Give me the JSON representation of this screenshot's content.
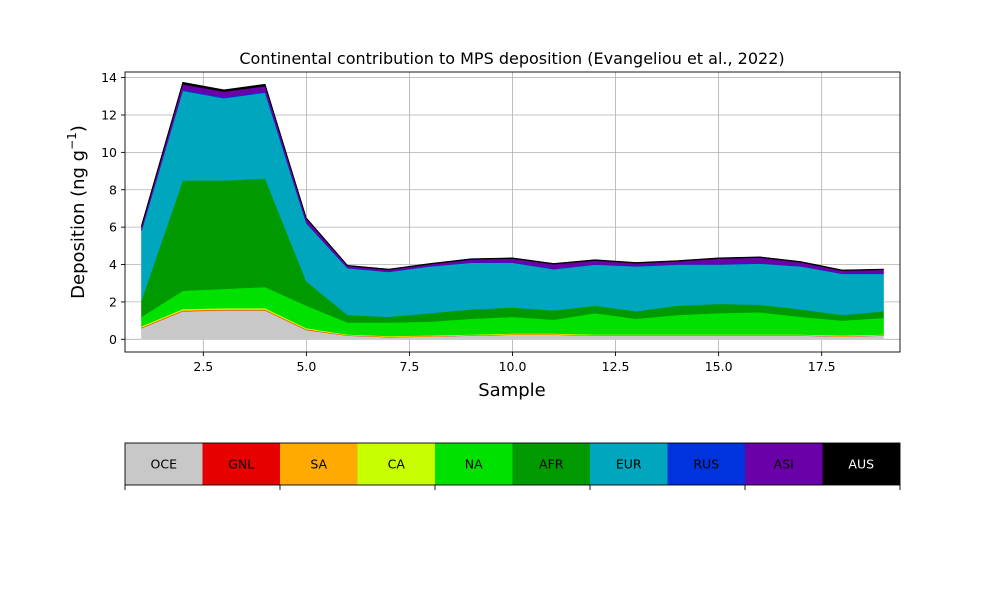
{
  "chart_data": {
    "type": "area",
    "title": "Continental contribution to MPS deposition (Evangeliou et al., 2022)",
    "xlabel": "Sample",
    "ylabel": "Deposition (ng g",
    "ylabel_superscript": "−1",
    "ylabel_suffix": ")",
    "xlim": [
      0.6,
      19.4
    ],
    "ylim": [
      -0.68,
      14.3
    ],
    "xticks": [
      2.5,
      5.0,
      7.5,
      10.0,
      12.5,
      15.0,
      17.5
    ],
    "xtick_labels": [
      "2.5",
      "5.0",
      "7.5",
      "10.0",
      "12.5",
      "15.0",
      "17.5"
    ],
    "yticks": [
      0,
      2,
      4,
      6,
      8,
      10,
      12,
      14
    ],
    "ytick_labels": [
      "0",
      "2",
      "4",
      "6",
      "8",
      "10",
      "12",
      "14"
    ],
    "grid": true,
    "stacked": true,
    "x": [
      1,
      2,
      3,
      4,
      5,
      6,
      7,
      8,
      9,
      10,
      11,
      12,
      13,
      14,
      15,
      16,
      17,
      18,
      19
    ],
    "series": [
      {
        "name": "OCE",
        "color": "#c8c8c8",
        "values": [
          0.6,
          1.5,
          1.55,
          1.55,
          0.5,
          0.2,
          0.12,
          0.15,
          0.2,
          0.25,
          0.25,
          0.2,
          0.2,
          0.2,
          0.2,
          0.2,
          0.2,
          0.15,
          0.2
        ]
      },
      {
        "name": "GNL",
        "color": "#e60000",
        "values": [
          0.02,
          0.02,
          0.02,
          0.02,
          0.02,
          0.01,
          0.01,
          0.01,
          0.01,
          0.01,
          0.01,
          0.01,
          0.01,
          0.01,
          0.01,
          0.01,
          0.01,
          0.01,
          0.01
        ]
      },
      {
        "name": "SA",
        "color": "#ffaa00",
        "values": [
          0.03,
          0.04,
          0.04,
          0.04,
          0.03,
          0.02,
          0.02,
          0.02,
          0.02,
          0.02,
          0.02,
          0.02,
          0.02,
          0.02,
          0.02,
          0.02,
          0.02,
          0.02,
          0.02
        ]
      },
      {
        "name": "CA",
        "color": "#c8ff00",
        "values": [
          0.05,
          0.06,
          0.06,
          0.06,
          0.05,
          0.03,
          0.03,
          0.03,
          0.03,
          0.03,
          0.03,
          0.03,
          0.03,
          0.03,
          0.03,
          0.03,
          0.03,
          0.03,
          0.03
        ]
      },
      {
        "name": "NA",
        "color": "#00e100",
        "values": [
          0.5,
          0.98,
          1.03,
          1.13,
          1.2,
          0.64,
          0.72,
          0.74,
          0.84,
          0.89,
          0.74,
          1.14,
          0.84,
          1.04,
          1.14,
          1.19,
          0.94,
          0.79,
          0.89
        ]
      },
      {
        "name": "AFR",
        "color": "#009900",
        "values": [
          0.9,
          5.9,
          5.8,
          5.8,
          1.3,
          0.4,
          0.3,
          0.45,
          0.5,
          0.5,
          0.5,
          0.4,
          0.4,
          0.5,
          0.5,
          0.4,
          0.4,
          0.3,
          0.35
        ]
      },
      {
        "name": "EUR",
        "color": "#00a6bd",
        "values": [
          3.7,
          4.8,
          4.4,
          4.6,
          3.1,
          2.5,
          2.4,
          2.5,
          2.5,
          2.4,
          2.2,
          2.2,
          2.4,
          2.2,
          2.1,
          2.2,
          2.3,
          2.2,
          2.0
        ]
      },
      {
        "name": "RUS",
        "color": "#0033dd",
        "values": [
          0.05,
          0.05,
          0.05,
          0.05,
          0.04,
          0.02,
          0.02,
          0.02,
          0.02,
          0.02,
          0.02,
          0.02,
          0.02,
          0.02,
          0.02,
          0.02,
          0.02,
          0.02,
          0.02
        ]
      },
      {
        "name": "ASI",
        "color": "#6a00a8",
        "values": [
          0.15,
          0.3,
          0.3,
          0.3,
          0.2,
          0.1,
          0.1,
          0.1,
          0.15,
          0.2,
          0.25,
          0.2,
          0.15,
          0.15,
          0.3,
          0.3,
          0.2,
          0.15,
          0.2
        ]
      },
      {
        "name": "AUS",
        "color": "#000000",
        "values": [
          0.1,
          0.1,
          0.1,
          0.1,
          0.06,
          0.04,
          0.04,
          0.04,
          0.04,
          0.04,
          0.04,
          0.04,
          0.04,
          0.04,
          0.04,
          0.04,
          0.04,
          0.04,
          0.04
        ]
      }
    ]
  },
  "legend": {
    "placement": "bottom",
    "label_colors": {
      "OCE": "#000000",
      "GNL": "#000000",
      "SA": "#000000",
      "CA": "#000000",
      "NA": "#000000",
      "AFR": "#000000",
      "EUR": "#000000",
      "RUS": "#000000",
      "ASI": "#000000",
      "AUS": "#ffffff"
    }
  }
}
